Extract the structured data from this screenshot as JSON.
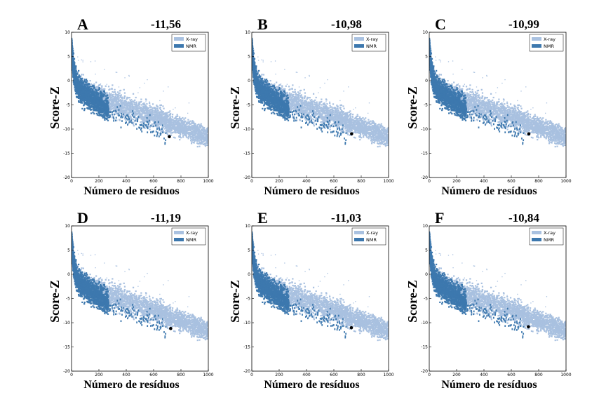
{
  "chart_data": [
    {
      "type": "scatter",
      "panel_letter": "A",
      "zscore": "-11,56",
      "target": {
        "residues": 715,
        "z": -11.56
      }
    },
    {
      "type": "scatter",
      "panel_letter": "B",
      "zscore": "-10,98",
      "target": {
        "residues": 730,
        "z": -10.98
      }
    },
    {
      "type": "scatter",
      "panel_letter": "C",
      "zscore": "-10,99",
      "target": {
        "residues": 728,
        "z": -10.99
      }
    },
    {
      "type": "scatter",
      "panel_letter": "D",
      "zscore": "-11,19",
      "target": {
        "residues": 725,
        "z": -11.19
      }
    },
    {
      "type": "scatter",
      "panel_letter": "E",
      "zscore": "-11,03",
      "target": {
        "residues": 728,
        "z": -11.03
      }
    },
    {
      "type": "scatter",
      "panel_letter": "F",
      "zscore": "-10,84",
      "target": {
        "residues": 725,
        "z": -10.84
      }
    }
  ],
  "shared": {
    "xlabel": "Número de resíduos",
    "ylabel": "Score-Z",
    "xlim": [
      0,
      1000
    ],
    "ylim": [
      -20,
      10
    ],
    "xticks": [
      "0",
      "200",
      "400",
      "600",
      "800",
      "1000"
    ],
    "yticks": [
      "10",
      "5",
      "0",
      "-5",
      "-10",
      "-15",
      "-20"
    ],
    "legend": [
      {
        "name": "X-ray",
        "color": "#a9c1e0"
      },
      {
        "name": "NMR",
        "color": "#3d78ae"
      }
    ],
    "legend_position": "top-right",
    "target_color": "#000000"
  }
}
